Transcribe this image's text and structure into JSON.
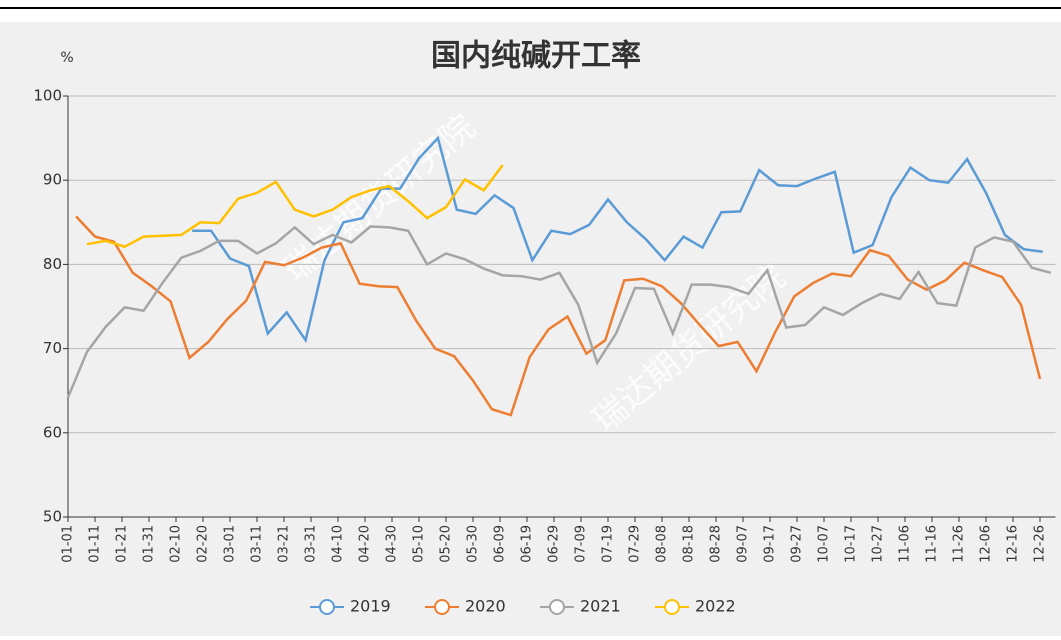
{
  "chart_data": {
    "type": "line",
    "title": "国内纯碱开工率",
    "y_label": "%",
    "watermark": "瑞达期货研究院",
    "xlim": [
      1,
      366
    ],
    "ylim": [
      50,
      100
    ],
    "yticks": [
      50,
      60,
      70,
      80,
      90,
      100
    ],
    "grid": true,
    "legend": "bottom",
    "xticks": [
      {
        "value": 1,
        "label": "01-01"
      },
      {
        "value": 11,
        "label": "01-11"
      },
      {
        "value": 21,
        "label": "01-21"
      },
      {
        "value": 31,
        "label": "01-31"
      },
      {
        "value": 41,
        "label": "02-10"
      },
      {
        "value": 51,
        "label": "02-20"
      },
      {
        "value": 61,
        "label": "03-01"
      },
      {
        "value": 71,
        "label": "03-11"
      },
      {
        "value": 81,
        "label": "03-21"
      },
      {
        "value": 91,
        "label": "03-31"
      },
      {
        "value": 101,
        "label": "04-10"
      },
      {
        "value": 111,
        "label": "04-20"
      },
      {
        "value": 121,
        "label": "04-30"
      },
      {
        "value": 131,
        "label": "05-10"
      },
      {
        "value": 141,
        "label": "05-20"
      },
      {
        "value": 151,
        "label": "05-30"
      },
      {
        "value": 161,
        "label": "06-09"
      },
      {
        "value": 171,
        "label": "06-19"
      },
      {
        "value": 181,
        "label": "06-29"
      },
      {
        "value": 191,
        "label": "07-09"
      },
      {
        "value": 201,
        "label": "07-19"
      },
      {
        "value": 211,
        "label": "07-29"
      },
      {
        "value": 221,
        "label": "08-08"
      },
      {
        "value": 231,
        "label": "08-18"
      },
      {
        "value": 241,
        "label": "08-28"
      },
      {
        "value": 251,
        "label": "09-07"
      },
      {
        "value": 261,
        "label": "09-17"
      },
      {
        "value": 271,
        "label": "09-27"
      },
      {
        "value": 281,
        "label": "10-07"
      },
      {
        "value": 291,
        "label": "10-17"
      },
      {
        "value": 301,
        "label": "10-27"
      },
      {
        "value": 311,
        "label": "11-06"
      },
      {
        "value": 321,
        "label": "11-16"
      },
      {
        "value": 331,
        "label": "11-26"
      },
      {
        "value": 341,
        "label": "12-06"
      },
      {
        "value": 351,
        "label": "12-16"
      },
      {
        "value": 361,
        "label": "12-26"
      }
    ],
    "series": [
      {
        "name": "2019",
        "color": "#5b9bd5",
        "x": [
          47,
          54,
          61,
          68,
          75,
          82,
          89,
          96,
          103,
          110,
          117,
          124,
          131,
          138,
          145,
          152,
          159,
          166,
          173,
          180,
          187,
          194,
          201,
          208,
          215,
          222,
          229,
          236,
          243,
          250,
          257,
          264,
          271,
          278,
          285,
          292,
          299,
          306,
          313,
          320,
          327,
          334,
          341,
          348,
          355,
          362
        ],
        "values": [
          84,
          84,
          80.7,
          79.8,
          71.8,
          74.3,
          71,
          80.5,
          85,
          85.5,
          89,
          89,
          92.6,
          95,
          86.5,
          86,
          88.2,
          86.7,
          80.5,
          84,
          83.6,
          84.7,
          87.7,
          85,
          83,
          80.5,
          83.3,
          82,
          86.2,
          86.3,
          91.2,
          89.4,
          89.3,
          90.2,
          91,
          81.4,
          82.3,
          88,
          91.5,
          90,
          89.7,
          92.5,
          88.5,
          83.5,
          81.8,
          81.5
        ]
      },
      {
        "name": "2020",
        "color": "#ed7d31",
        "x": [
          4,
          11,
          18,
          25,
          32,
          39,
          46,
          53,
          60,
          67,
          74,
          81,
          88,
          95,
          102,
          109,
          116,
          123,
          130,
          137,
          144,
          151,
          158,
          165,
          172,
          179,
          186,
          193,
          200,
          207,
          214,
          221,
          228,
          235,
          242,
          249,
          256,
          263,
          270,
          277,
          284,
          291,
          298,
          305,
          312,
          319,
          326,
          333,
          340,
          347,
          354,
          361
        ],
        "values": [
          85.7,
          83.3,
          82.7,
          79,
          77.4,
          75.6,
          68.9,
          70.8,
          73.5,
          75.7,
          80.3,
          79.9,
          80.8,
          82,
          82.5,
          77.7,
          77.4,
          77.3,
          73.3,
          70,
          69.1,
          66.2,
          62.8,
          62.1,
          69,
          72.3,
          73.8,
          69.4,
          71,
          78.1,
          78.3,
          77.4,
          75.4,
          72.8,
          70.3,
          70.8,
          67.3,
          72,
          76.2,
          77.8,
          78.9,
          78.6,
          81.7,
          81,
          78.2,
          77,
          78.1,
          80.2,
          79.3,
          78.5,
          75.2,
          66.4
        ]
      },
      {
        "name": "2021",
        "color": "#a5a5a5",
        "x": [
          1,
          8,
          15,
          22,
          29,
          36,
          43,
          50,
          57,
          64,
          71,
          78,
          85,
          92,
          99,
          106,
          113,
          120,
          127,
          134,
          141,
          148,
          155,
          162,
          169,
          176,
          183,
          190,
          197,
          204,
          211,
          218,
          225,
          232,
          239,
          246,
          253,
          260,
          267,
          274,
          281,
          288,
          295,
          302,
          309,
          316,
          323,
          330,
          337,
          344,
          351,
          358,
          365
        ],
        "values": [
          64.2,
          69.6,
          72.6,
          74.9,
          74.5,
          77.8,
          80.8,
          81.6,
          82.8,
          82.8,
          81.3,
          82.5,
          84.4,
          82.4,
          83.5,
          82.6,
          84.5,
          84.4,
          84,
          80,
          81.3,
          80.6,
          79.5,
          78.7,
          78.6,
          78.2,
          79,
          75.2,
          68.3,
          71.8,
          77.2,
          77.1,
          71.8,
          77.6,
          77.6,
          77.3,
          76.5,
          79.3,
          72.5,
          72.8,
          74.9,
          74,
          75.4,
          76.5,
          75.9,
          79.1,
          75.4,
          75.1,
          82,
          83.2,
          82.7,
          79.6,
          79
        ]
      },
      {
        "name": "2022",
        "color": "#ffc000",
        "x": [
          8,
          15,
          22,
          29,
          36,
          43,
          50,
          57,
          64,
          71,
          78,
          85,
          92,
          99,
          106,
          113,
          120,
          127,
          134,
          141,
          148,
          155,
          162
        ],
        "values": [
          82.4,
          82.8,
          82.1,
          83.3,
          83.4,
          83.5,
          85,
          84.9,
          87.8,
          88.5,
          89.8,
          86.5,
          85.7,
          86.5,
          88,
          88.8,
          89.3,
          87.5,
          85.5,
          86.8,
          90.1,
          88.8,
          91.8
        ]
      }
    ]
  }
}
